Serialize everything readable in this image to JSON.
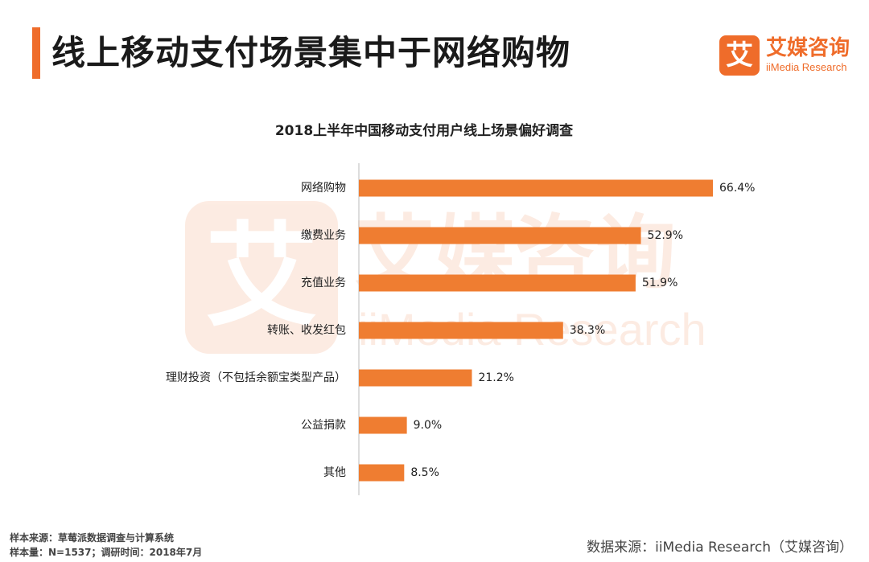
{
  "header": {
    "title": "线上移动支付场景集中于网络购物"
  },
  "logo": {
    "glyph": "艾",
    "name_cn": "艾媒咨询",
    "name_en": "iiMedia Research"
  },
  "chart_data": {
    "type": "bar",
    "orientation": "horizontal",
    "title": "2018上半年中国移动支付用户线上场景偏好调查",
    "categories": [
      "网络购物",
      "缴费业务",
      "充值业务",
      "转账、收发红包",
      "理财投资（不包括余额宝类型产品）",
      "公益捐款",
      "其他"
    ],
    "values": [
      66.4,
      52.9,
      51.9,
      38.3,
      21.2,
      9.0,
      8.5
    ],
    "value_labels": [
      "66.4%",
      "52.9%",
      "51.9%",
      "38.3%",
      "21.2%",
      "9.0%",
      "8.5%"
    ],
    "unit": "%",
    "xlim": [
      0,
      66.4
    ],
    "bar_color": "#ef7d31",
    "grid": false,
    "legend": "none"
  },
  "footer": {
    "sample_source": "样本来源：草莓派数据调查与计算系统",
    "sample_size": "样本量：N=1537；调研时间：2018年7月",
    "data_source": "数据来源：iiMedia Research（艾媒咨询）"
  },
  "colors": {
    "accent": "#ef6c2a",
    "bar": "#ef7d31"
  }
}
